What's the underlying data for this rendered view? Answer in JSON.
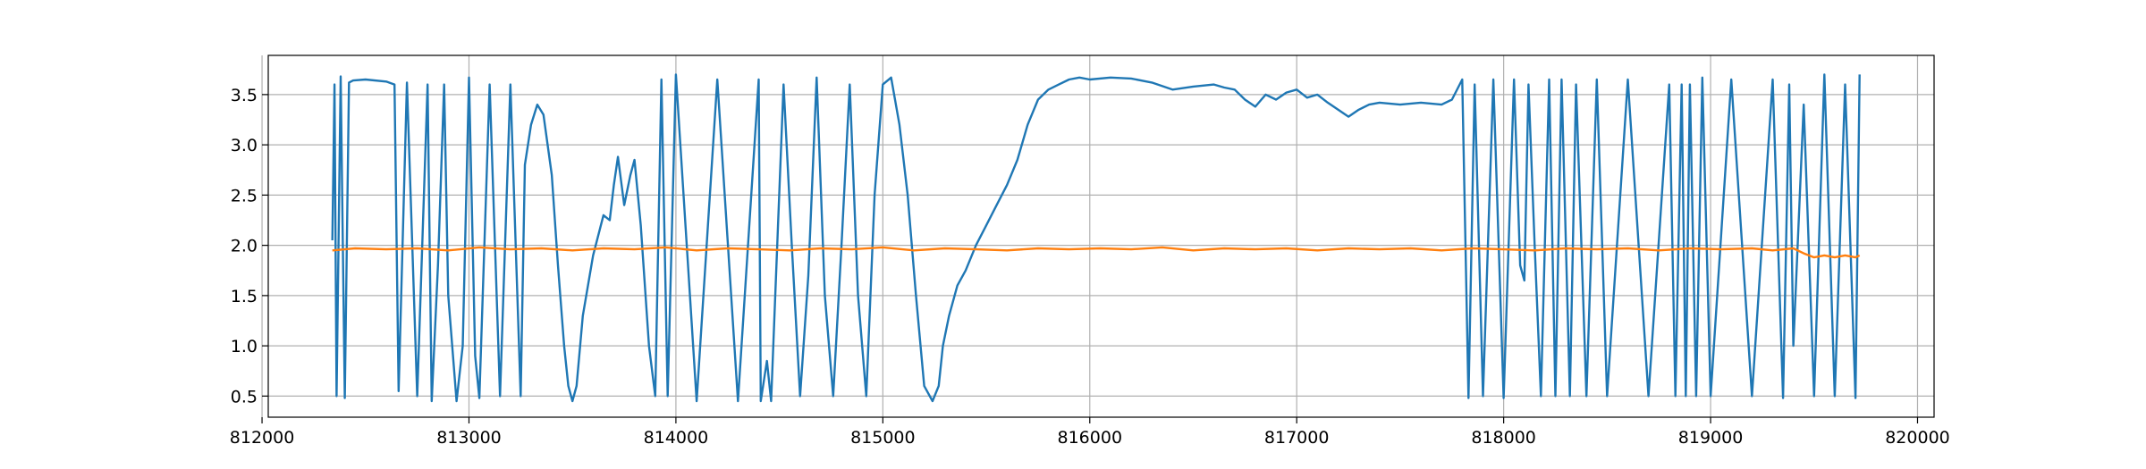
{
  "chart_data": {
    "type": "line",
    "title": "",
    "xlabel": "",
    "ylabel": "",
    "grid": true,
    "legend": "none",
    "xlim": [
      812030,
      820080
    ],
    "ylim": [
      0.29,
      3.89
    ],
    "xticks": [
      812000,
      813000,
      814000,
      815000,
      816000,
      817000,
      818000,
      819000,
      820000
    ],
    "xtick_labels": [
      "812000",
      "813000",
      "814000",
      "815000",
      "816000",
      "817000",
      "818000",
      "819000",
      "820000"
    ],
    "yticks": [
      0.5,
      1.0,
      1.5,
      2.0,
      2.5,
      3.0,
      3.5
    ],
    "ytick_labels": [
      "0.5",
      "1.0",
      "1.5",
      "2.0",
      "2.5",
      "3.0",
      "3.5"
    ],
    "series": [
      {
        "color": "#1f77b4",
        "x": [
          812340,
          812350,
          812360,
          812380,
          812400,
          812420,
          812440,
          812500,
          812600,
          812640,
          812660,
          812700,
          812750,
          812800,
          812820,
          812850,
          812880,
          812900,
          812940,
          812970,
          813000,
          813030,
          813050,
          813100,
          813150,
          813200,
          813250,
          813270,
          813300,
          813330,
          813360,
          813400,
          813430,
          813460,
          813480,
          813500,
          813520,
          813550,
          813600,
          813650,
          813680,
          813700,
          813720,
          813750,
          813780,
          813800,
          813830,
          813870,
          813900,
          813930,
          813960,
          814000,
          814100,
          814200,
          814300,
          814400,
          814410,
          814440,
          814460,
          814480,
          814520,
          814560,
          814600,
          814640,
          814680,
          814720,
          814760,
          814800,
          814840,
          814880,
          814920,
          814960,
          815000,
          815040,
          815080,
          815120,
          815160,
          815200,
          815240,
          815270,
          815290,
          815320,
          815360,
          815400,
          815450,
          815500,
          815550,
          815600,
          815650,
          815700,
          815750,
          815800,
          815850,
          815900,
          815950,
          816000,
          816100,
          816200,
          816300,
          816400,
          816500,
          816600,
          816650,
          816700,
          816750,
          816800,
          816850,
          816900,
          816950,
          817000,
          817050,
          817100,
          817150,
          817200,
          817250,
          817300,
          817350,
          817400,
          817500,
          817600,
          817700,
          817750,
          817800,
          817830,
          817860,
          817900,
          817950,
          818000,
          818050,
          818080,
          818100,
          818120,
          818150,
          818180,
          818220,
          818250,
          818280,
          818320,
          818350,
          818400,
          818450,
          818500,
          818600,
          818700,
          818800,
          818830,
          818860,
          818880,
          818900,
          818930,
          818960,
          819000,
          819100,
          819200,
          819300,
          819350,
          819380,
          819400,
          819450,
          819500,
          819550,
          819600,
          819650,
          819700,
          819720
        ],
        "y": [
          2.05,
          3.6,
          0.5,
          3.68,
          0.48,
          3.62,
          3.64,
          3.65,
          3.63,
          3.6,
          0.55,
          3.62,
          0.5,
          3.6,
          0.45,
          1.8,
          3.6,
          1.5,
          0.45,
          1.0,
          3.67,
          0.9,
          0.48,
          3.6,
          0.5,
          3.6,
          0.5,
          2.8,
          3.2,
          3.4,
          3.3,
          2.7,
          1.8,
          1.0,
          0.6,
          0.45,
          0.6,
          1.3,
          1.9,
          2.3,
          2.25,
          2.6,
          2.88,
          2.4,
          2.7,
          2.85,
          2.2,
          1.0,
          0.5,
          3.65,
          0.5,
          3.7,
          0.45,
          3.65,
          0.45,
          3.65,
          0.45,
          0.85,
          0.45,
          1.5,
          3.6,
          2.0,
          0.5,
          1.7,
          3.67,
          1.5,
          0.5,
          2.0,
          3.6,
          1.5,
          0.5,
          2.5,
          3.6,
          3.67,
          3.2,
          2.5,
          1.5,
          0.6,
          0.45,
          0.6,
          1.0,
          1.3,
          1.6,
          1.75,
          2.0,
          2.2,
          2.4,
          2.6,
          2.85,
          3.2,
          3.45,
          3.55,
          3.6,
          3.65,
          3.67,
          3.65,
          3.67,
          3.66,
          3.62,
          3.55,
          3.58,
          3.6,
          3.57,
          3.55,
          3.45,
          3.38,
          3.5,
          3.45,
          3.52,
          3.55,
          3.47,
          3.5,
          3.42,
          3.35,
          3.28,
          3.35,
          3.4,
          3.42,
          3.4,
          3.42,
          3.4,
          3.45,
          3.65,
          0.48,
          3.6,
          0.5,
          3.65,
          0.48,
          3.65,
          1.8,
          1.65,
          3.6,
          2.0,
          0.5,
          3.65,
          0.5,
          3.65,
          0.5,
          3.6,
          0.5,
          3.65,
          0.5,
          3.65,
          0.5,
          3.6,
          0.5,
          3.6,
          0.5,
          3.6,
          0.5,
          3.67,
          0.5,
          3.65,
          0.5,
          3.65,
          0.48,
          3.6,
          1.0,
          3.4,
          0.5,
          3.7,
          0.5,
          3.6,
          0.48,
          3.7
        ]
      },
      {
        "color": "#ff7f0e",
        "x": [
          812340,
          812450,
          812600,
          812750,
          812900,
          813050,
          813200,
          813350,
          813500,
          813650,
          813800,
          813950,
          814100,
          814250,
          814400,
          814550,
          814700,
          814850,
          815000,
          815150,
          815300,
          815450,
          815600,
          815750,
          815900,
          816050,
          816200,
          816350,
          816500,
          816650,
          816800,
          816950,
          817100,
          817250,
          817400,
          817550,
          817700,
          817850,
          818000,
          818150,
          818300,
          818450,
          818600,
          818750,
          818900,
          819050,
          819200,
          819300,
          819400,
          819450,
          819500,
          819550,
          819600,
          819650,
          819700,
          819720
        ],
        "y": [
          1.95,
          1.97,
          1.96,
          1.97,
          1.95,
          1.98,
          1.96,
          1.97,
          1.95,
          1.97,
          1.96,
          1.98,
          1.95,
          1.97,
          1.96,
          1.95,
          1.97,
          1.96,
          1.98,
          1.95,
          1.97,
          1.96,
          1.95,
          1.97,
          1.96,
          1.97,
          1.96,
          1.98,
          1.95,
          1.97,
          1.96,
          1.97,
          1.95,
          1.97,
          1.96,
          1.97,
          1.95,
          1.97,
          1.96,
          1.95,
          1.97,
          1.96,
          1.97,
          1.95,
          1.97,
          1.96,
          1.97,
          1.95,
          1.97,
          1.92,
          1.88,
          1.9,
          1.88,
          1.9,
          1.88,
          1.9
        ]
      }
    ]
  }
}
